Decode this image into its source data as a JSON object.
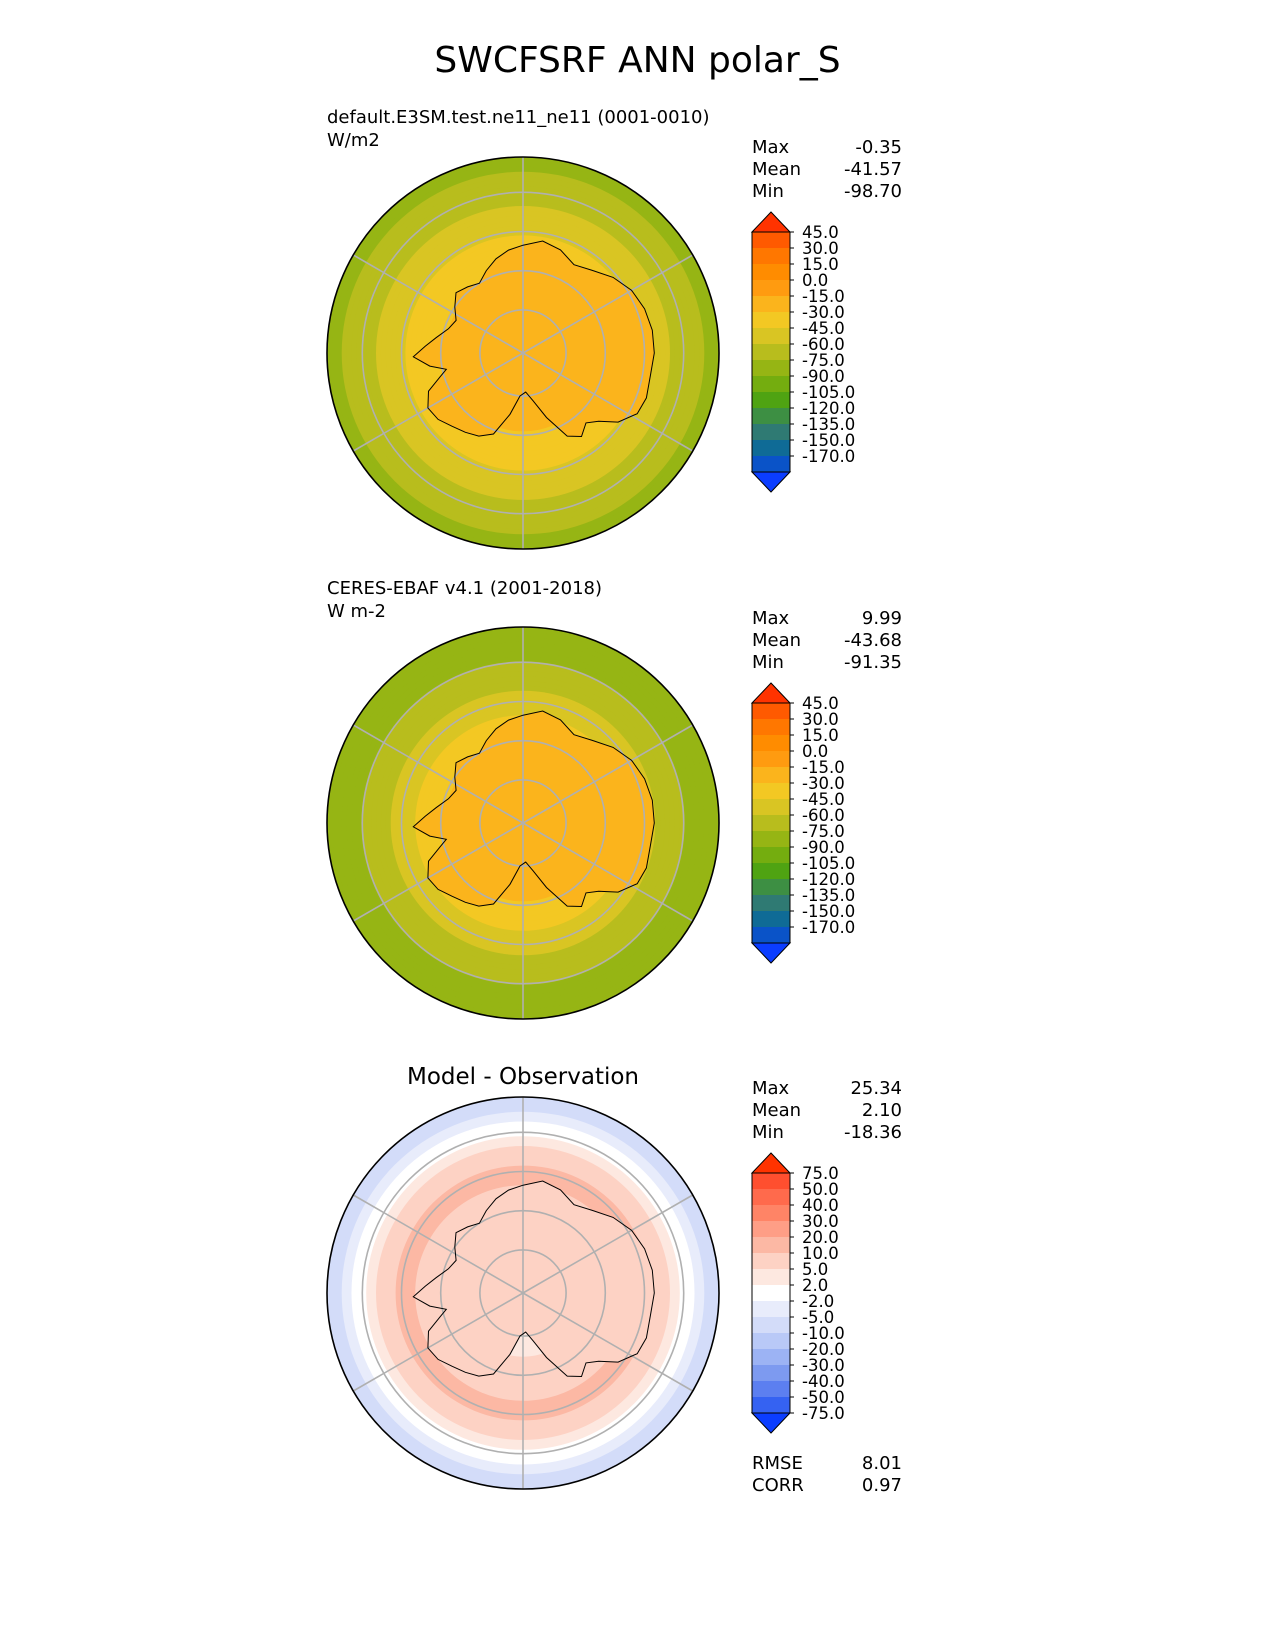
{
  "figure": {
    "title": "SWCFSRF ANN polar_S"
  },
  "panels": [
    {
      "id": "test",
      "title": "default.E3SM.test.ne11_ne11 (0001-0010)",
      "units": "W/m2",
      "stats": [
        {
          "label": "Max",
          "value": "-0.35"
        },
        {
          "label": "Mean",
          "value": "-41.57"
        },
        {
          "label": "Min",
          "value": "-98.70"
        }
      ]
    },
    {
      "id": "reference",
      "title": "CERES-EBAF v4.1 (2001-2018)",
      "units": "W m-2",
      "stats": [
        {
          "label": "Max",
          "value": "9.99"
        },
        {
          "label": "Mean",
          "value": "-43.68"
        },
        {
          "label": "Min",
          "value": "-91.35"
        }
      ]
    },
    {
      "id": "diff",
      "title": "Model - Observation",
      "units": "",
      "stats": [
        {
          "label": "Max",
          "value": "25.34"
        },
        {
          "label": "Mean",
          "value": "2.10"
        },
        {
          "label": "Min",
          "value": "-18.36"
        }
      ],
      "metrics": [
        {
          "label": "RMSE",
          "value": "8.01"
        },
        {
          "label": "CORR",
          "value": "0.97"
        }
      ]
    }
  ],
  "chart_data": [
    {
      "type": "heatmap",
      "projection": "south-polar-stereographic",
      "title": "default.E3SM.test.ne11_ne11 (0001-0010)",
      "units": "W/m2",
      "colorbar": {
        "levels": [
          "45.0",
          "30.0",
          "15.0",
          "0.0",
          "-15.0",
          "-30.0",
          "-45.0",
          "-60.0",
          "-75.0",
          "-90.0",
          "-105.0",
          "-120.0",
          "-135.0",
          "-150.0",
          "-170.0"
        ],
        "colors": [
          "#ff3300",
          "#ff5a00",
          "#ff7700",
          "#ff8c00",
          "#ff9b10",
          "#fbb41c",
          "#f3c823",
          "#d9c523",
          "#b8bd1d",
          "#96b514",
          "#74ad0f",
          "#4fa312",
          "#3d8f43",
          "#2f7a73",
          "#0f6b96",
          "#0a53c8",
          "#0b3dff"
        ],
        "extend": "both"
      },
      "rings": [
        {
          "r": 0.0,
          "value": -30
        },
        {
          "r": 0.25,
          "value": -30
        },
        {
          "r": 0.4,
          "value": -30
        },
        {
          "r": 0.55,
          "value": -40
        },
        {
          "r": 0.65,
          "value": -48
        },
        {
          "r": 0.75,
          "value": -60
        },
        {
          "r": 0.88,
          "value": -72
        },
        {
          "r": 1.0,
          "value": -80
        }
      ],
      "land_value": -30,
      "stats": {
        "max": -0.35,
        "mean": -41.57,
        "min": -98.7
      }
    },
    {
      "type": "heatmap",
      "projection": "south-polar-stereographic",
      "title": "CERES-EBAF v4.1 (2001-2018)",
      "units": "W m-2",
      "colorbar": {
        "levels": [
          "45.0",
          "30.0",
          "15.0",
          "0.0",
          "-15.0",
          "-30.0",
          "-45.0",
          "-60.0",
          "-75.0",
          "-90.0",
          "-105.0",
          "-120.0",
          "-135.0",
          "-150.0",
          "-170.0"
        ],
        "colors": [
          "#ff3300",
          "#ff5a00",
          "#ff7700",
          "#ff8c00",
          "#ff9b10",
          "#fbb41c",
          "#f3c823",
          "#d9c523",
          "#b8bd1d",
          "#96b514",
          "#74ad0f",
          "#4fa312",
          "#3d8f43",
          "#2f7a73",
          "#0f6b96",
          "#0a53c8",
          "#0b3dff"
        ],
        "extend": "both"
      },
      "rings": [
        {
          "r": 0.0,
          "value": -30
        },
        {
          "r": 0.25,
          "value": -30
        },
        {
          "r": 0.4,
          "value": -30
        },
        {
          "r": 0.55,
          "value": -45
        },
        {
          "r": 0.65,
          "value": -55
        },
        {
          "r": 0.75,
          "value": -68
        },
        {
          "r": 0.88,
          "value": -80
        },
        {
          "r": 1.0,
          "value": -85
        }
      ],
      "land_value": -30,
      "stats": {
        "max": 9.99,
        "mean": -43.68,
        "min": -91.35
      }
    },
    {
      "type": "heatmap",
      "projection": "south-polar-stereographic",
      "title": "Model - Observation",
      "units": "",
      "colorbar": {
        "levels": [
          "75.0",
          "50.0",
          "40.0",
          "30.0",
          "20.0",
          "10.0",
          "5.0",
          "2.0",
          "-2.0",
          "-5.0",
          "-10.0",
          "-20.0",
          "-30.0",
          "-40.0",
          "-50.0",
          "-75.0"
        ],
        "colors": [
          "#ff3300",
          "#ff4f2f",
          "#ff6a4c",
          "#ff8466",
          "#fe9e86",
          "#fcb8a4",
          "#fdd2c4",
          "#fde8e0",
          "#ffffff",
          "#e8ecfb",
          "#d3dcf9",
          "#b9c9f7",
          "#9cb3f4",
          "#7d9af0",
          "#5c7ff0",
          "#3562f2",
          "#0b3dff"
        ],
        "extend": "both"
      },
      "rings": [
        {
          "r": 0.0,
          "value": 0
        },
        {
          "r": 0.3,
          "value": 4
        },
        {
          "r": 0.5,
          "value": 8
        },
        {
          "r": 0.62,
          "value": 12
        },
        {
          "r": 0.74,
          "value": 7
        },
        {
          "r": 0.84,
          "value": 1
        },
        {
          "r": 0.92,
          "value": -4
        },
        {
          "r": 1.0,
          "value": -8
        }
      ],
      "land_value": 5,
      "stats": {
        "max": 25.34,
        "mean": 2.1,
        "min": -18.36,
        "rmse": 8.01,
        "corr": 0.97
      }
    }
  ]
}
